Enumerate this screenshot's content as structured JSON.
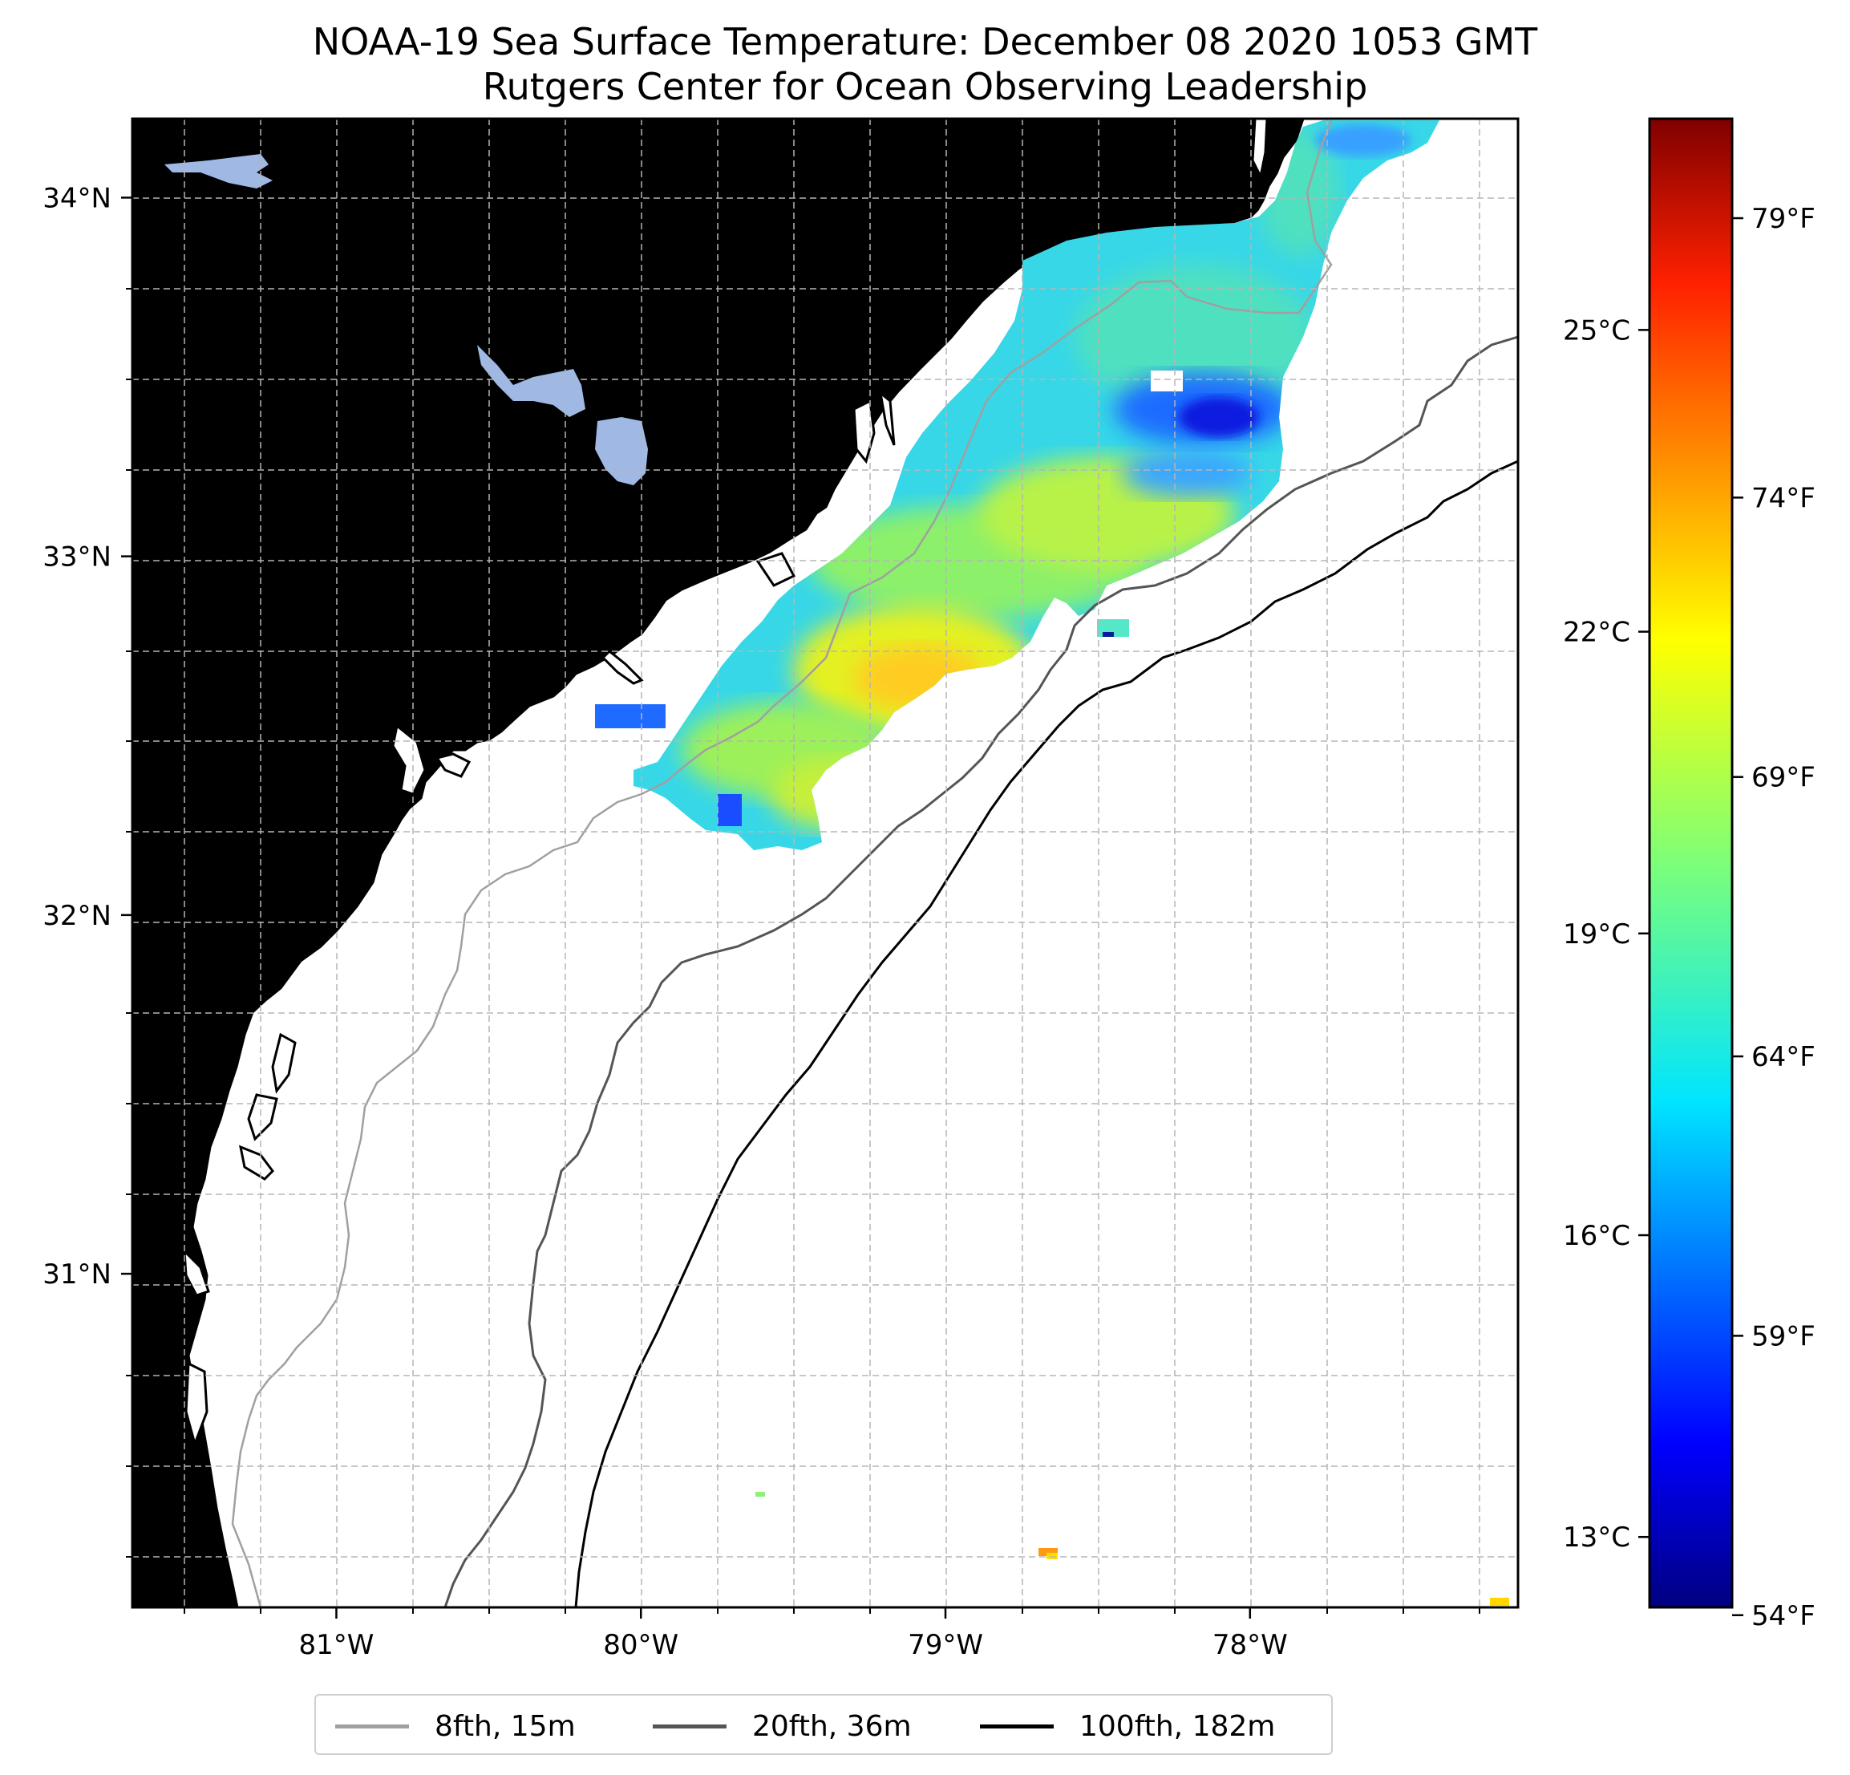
{
  "title": "NOAA-19 Sea Surface Temperature: December 08 2020 1053 GMT",
  "subtitle": "Rutgers Center for Ocean Observing Leadership",
  "map": {
    "lon_range": [
      -81.67,
      -77.12
    ],
    "lat_range": [
      30.07,
      34.22
    ],
    "lon_tick_labels": [
      {
        "lon": -81,
        "label": "81°W"
      },
      {
        "lon": -80,
        "label": "80°W"
      },
      {
        "lon": -79,
        "label": "79°W"
      },
      {
        "lon": -78,
        "label": "78°W"
      }
    ],
    "lat_tick_labels": [
      {
        "lat": 34,
        "label": "34°N"
      },
      {
        "lat": 33,
        "label": "33°N"
      },
      {
        "lat": 32,
        "label": "32°N"
      },
      {
        "lat": 31,
        "label": "31°N"
      }
    ],
    "gridlines": true,
    "land_color": "#cfb28b",
    "water_body_color": "#9fb9e4",
    "ocean_color": "#ffffff"
  },
  "colorbar": {
    "colormap": "jet",
    "range_c": [
      12.3,
      27.1
    ],
    "celsius_ticks": [
      {
        "value": 13,
        "label": "13°C"
      },
      {
        "value": 16,
        "label": "16°C"
      },
      {
        "value": 19,
        "label": "19°C"
      },
      {
        "value": 22,
        "label": "22°C"
      },
      {
        "value": 25,
        "label": "25°C"
      }
    ],
    "fahrenheit_ticks": [
      {
        "value": 54,
        "label": "54°F"
      },
      {
        "value": 59,
        "label": "59°F"
      },
      {
        "value": 64,
        "label": "64°F"
      },
      {
        "value": 69,
        "label": "69°F"
      },
      {
        "value": 74,
        "label": "74°F"
      },
      {
        "value": 79,
        "label": "79°F"
      }
    ]
  },
  "legend": {
    "placement": "bottom-center",
    "items": [
      {
        "label": "8fth, 15m",
        "color": "#a0a0a0"
      },
      {
        "label": "20fth, 36m",
        "color": "#555555"
      },
      {
        "label": "100fth, 182m",
        "color": "#000000"
      }
    ]
  }
}
